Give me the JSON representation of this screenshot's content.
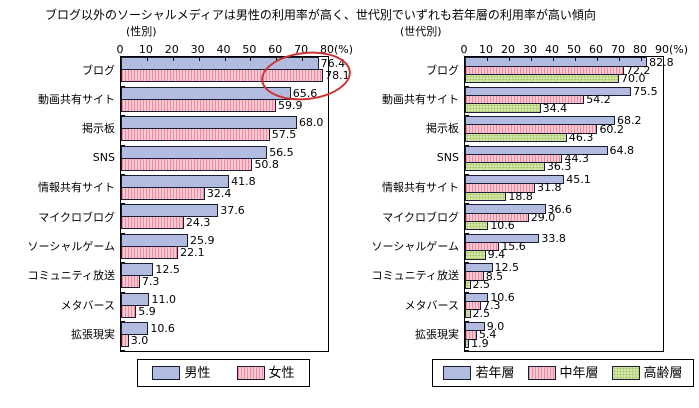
{
  "title": "ブログ以外のソーシャルメディアは男性の利用率が高く、世代別でいずれも若年層の利用率が高い傾向",
  "colors": {
    "bar_border": "#1c1c35",
    "plot_border": "#000000",
    "annotation_red": "#cc3333",
    "text": "#000000",
    "background": "#ffffff"
  },
  "chart_data": [
    {
      "type": "bar",
      "orientation": "horizontal",
      "subtitle": "(性別)",
      "axis_max": 80,
      "axis_ticks": [
        0,
        10,
        20,
        30,
        40,
        50,
        60,
        70,
        80
      ],
      "axis_unit": "(%)",
      "grid": false,
      "legend_position": "bottom",
      "categories": [
        "ブログ",
        "動画共有サイト",
        "掲示板",
        "SNS",
        "情報共有サイト",
        "マイクロブログ",
        "ソーシャルゲーム",
        "コミュニティ放送",
        "メタバース",
        "拡張現実"
      ],
      "series": [
        {
          "name": "男性",
          "pattern": "solid",
          "fill": "#b2bce1",
          "accent": "#b2bce1",
          "values": [
            76.4,
            65.6,
            68.0,
            56.5,
            41.8,
            37.6,
            25.9,
            12.5,
            11.0,
            10.6
          ]
        },
        {
          "name": "女性",
          "pattern": "vstripes",
          "fill": "#f9c9d3",
          "accent": "#ee8ba0",
          "values": [
            78.1,
            59.9,
            57.5,
            50.8,
            32.4,
            24.3,
            22.1,
            7.3,
            5.9,
            3.0
          ]
        }
      ],
      "annotation": {
        "shape": "ellipse",
        "color": "#cc3333",
        "target_category": "ブログ",
        "circled_values": [
          76.4,
          78.1
        ]
      }
    },
    {
      "type": "bar",
      "orientation": "horizontal",
      "subtitle": "(世代別)",
      "axis_max": 90,
      "axis_ticks": [
        0,
        10,
        20,
        30,
        40,
        50,
        60,
        70,
        80,
        90
      ],
      "axis_unit": "(%)",
      "grid": false,
      "legend_position": "bottom",
      "categories": [
        "ブログ",
        "動画共有サイト",
        "掲示板",
        "SNS",
        "情報共有サイト",
        "マイクロブログ",
        "ソーシャルゲーム",
        "コミュニティ放送",
        "メタバース",
        "拡張現実"
      ],
      "series": [
        {
          "name": "若年層",
          "pattern": "solid",
          "fill": "#b2bce1",
          "accent": "#b2bce1",
          "values": [
            82.8,
            75.5,
            68.2,
            64.8,
            45.1,
            36.6,
            33.8,
            12.5,
            10.6,
            9.0
          ]
        },
        {
          "name": "中年層",
          "pattern": "vstripes",
          "fill": "#f9c9d3",
          "accent": "#ee8ba0",
          "values": [
            72.2,
            54.2,
            60.2,
            44.3,
            31.8,
            29.0,
            15.6,
            8.5,
            7.3,
            5.4
          ]
        },
        {
          "name": "高齢層",
          "pattern": "dots",
          "fill": "#d5e6aa",
          "accent": "#a5c767",
          "values": [
            70.0,
            34.4,
            46.3,
            36.3,
            18.8,
            10.6,
            9.4,
            2.5,
            2.5,
            1.9
          ]
        }
      ]
    }
  ]
}
